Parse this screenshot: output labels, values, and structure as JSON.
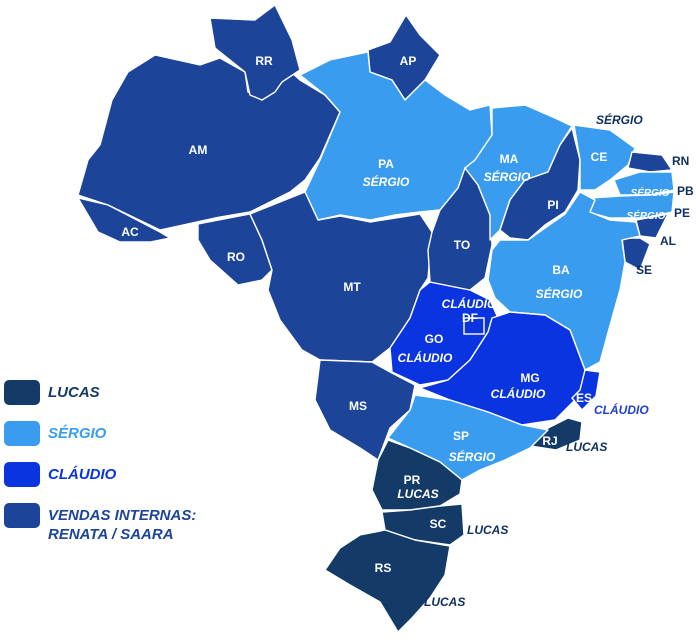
{
  "colors": {
    "lucas": "#143a68",
    "sergio": "#3a9cef",
    "claudio": "#0a34e0",
    "internas": "#1c4499",
    "border": "#ffffff"
  },
  "legend": [
    {
      "key": "lucas",
      "label": "LUCAS",
      "color": "#143a68"
    },
    {
      "key": "sergio",
      "label": "SÉRGIO",
      "color": "#3a9cef"
    },
    {
      "key": "claudio",
      "label": "CLÁUDIO",
      "color": "#0a34e0"
    },
    {
      "key": "internas",
      "label": "VENDAS INTERNAS:\nRENATA / SAARA",
      "color": "#1c4499"
    }
  ],
  "states": {
    "RR": {
      "code": "RR"
    },
    "AP": {
      "code": "AP"
    },
    "AM": {
      "code": "AM"
    },
    "PA": {
      "code": "PA",
      "rep": "SÉRGIO"
    },
    "AC": {
      "code": "AC"
    },
    "RO": {
      "code": "RO"
    },
    "MT": {
      "code": "MT"
    },
    "MA": {
      "code": "MA",
      "rep": "SÉRGIO"
    },
    "PI": {
      "code": "PI"
    },
    "CE": {
      "code": "CE"
    },
    "RN": {
      "code": "RN"
    },
    "PB": {
      "code": "PB",
      "rep": "SÉRGIO"
    },
    "PE": {
      "code": "PE",
      "rep": "SÉRGIO"
    },
    "AL": {
      "code": "AL"
    },
    "SE": {
      "code": "SE"
    },
    "TO": {
      "code": "TO"
    },
    "BA": {
      "code": "BA",
      "rep": "SÉRGIO"
    },
    "DF": {
      "code": "DF",
      "rep": "CLÁUDIO"
    },
    "GO": {
      "code": "GO",
      "rep": "CLÁUDIO"
    },
    "MG": {
      "code": "MG",
      "rep": "CLÁUDIO"
    },
    "ES": {
      "code": "ES",
      "rep": "CLÁUDIO"
    },
    "MS": {
      "code": "MS"
    },
    "SP": {
      "code": "SP",
      "rep": "SÉRGIO"
    },
    "RJ": {
      "code": "RJ",
      "rep": "LUCAS"
    },
    "PR": {
      "code": "PR",
      "rep": "LUCAS"
    },
    "SC": {
      "code": "SC",
      "rep": "LUCAS"
    },
    "RS": {
      "code": "RS",
      "rep": "LUCAS"
    }
  },
  "annotations": {
    "northeast_rep": "SÉRGIO"
  }
}
